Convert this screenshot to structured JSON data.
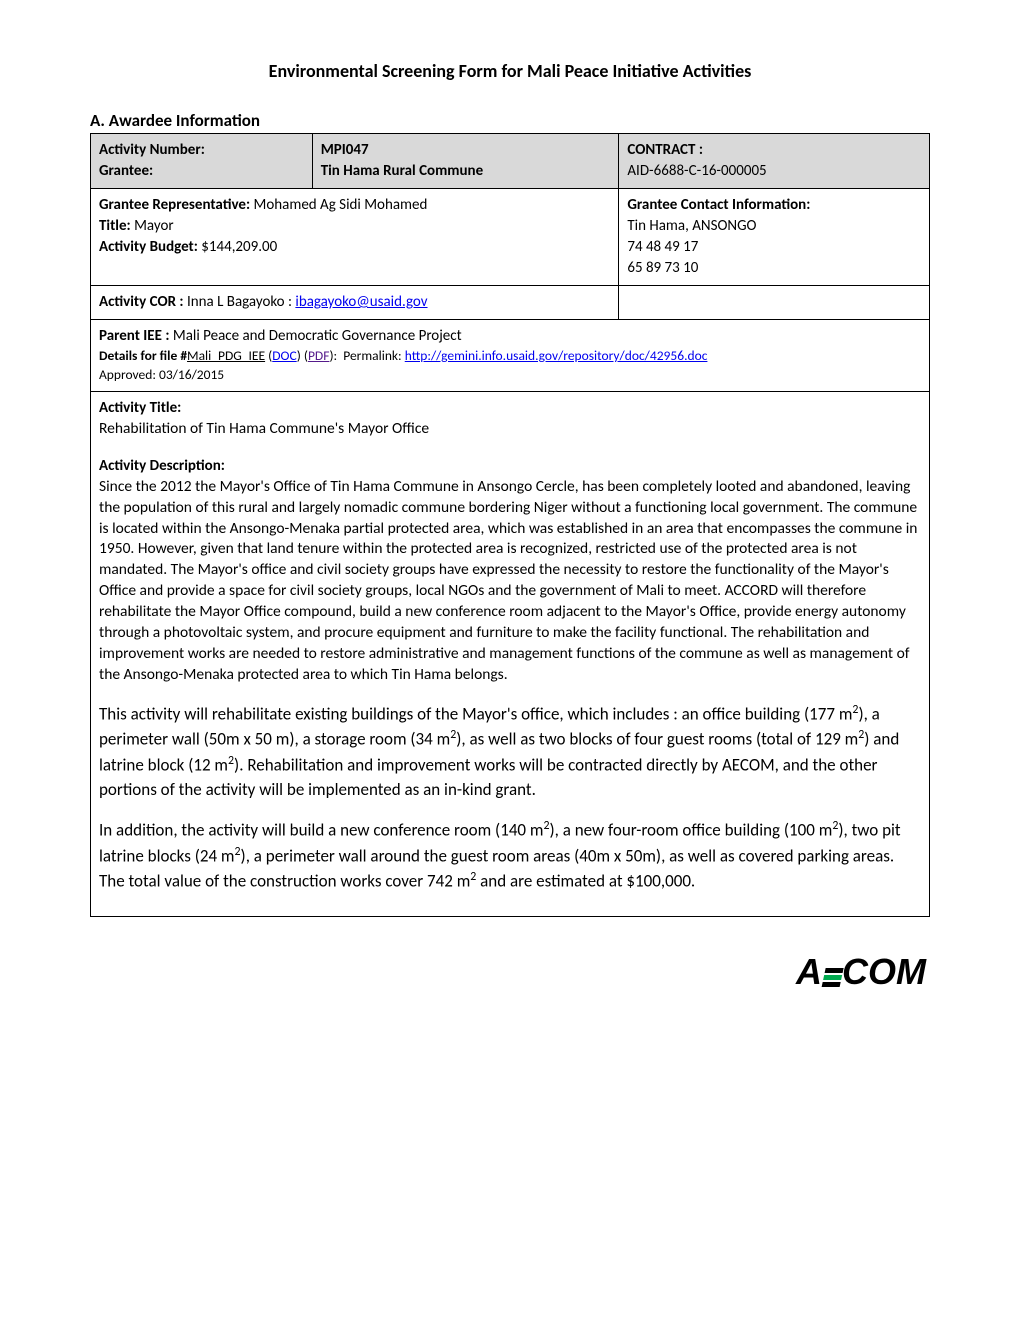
{
  "title": "Environmental Screening Form for Mali Peace Initiative Activities",
  "sectionA": {
    "heading": "A. Awardee Information",
    "activityNumberLabel": "Activity Number:",
    "activityNumber": "MPI047",
    "contractLabel": "CONTRACT :",
    "granteeLabel": "Grantee:",
    "grantee": "Tin Hama Rural Commune",
    "contractNumber": "AID-6688-C-16-000005",
    "granteeRepLabel": "Grantee Representative:",
    "granteeRep": "Mohamed Ag Sidi Mohamed",
    "titleLabel": "Title:",
    "titleValue": "Mayor",
    "budgetLabel": "Activity Budget:",
    "budgetValue": "$144,209.00",
    "contactLabel": "Grantee Contact Information:",
    "contactAddress": "Tin Hama, ANSONGO",
    "contactPhone1": "74 48 49 17",
    "contactPhone2": "65 89 73 10",
    "corLabel": "Activity COR :",
    "corName": "Inna L Bagayoko :",
    "corEmail": "ibagayoko@usaid.gov",
    "parentIEELabel": "Parent IEE :",
    "parentIEE": "Mali Peace and Democratic Governance Project",
    "detailsPrefix": "Details for file #",
    "fileName": "Mali_PDG_IEE",
    "docLink": "DOC",
    "pdfLink": "PDF",
    "permalinkLabel": "Permalink:",
    "permalink": "http://gemini.info.usaid.gov/repository/doc/42956.doc",
    "approved": "Approved:  03/16/2015"
  },
  "activity": {
    "titleLabel": "Activity Title:",
    "title": "Rehabilitation of Tin Hama Commune's Mayor Office",
    "descLabel": "Activity Description:",
    "para1": "Since the 2012 the Mayor's Office of Tin Hama Commune in Ansongo Cercle, has been completely looted and abandoned, leaving the population of this rural and largely nomadic commune bordering Niger without a functioning local government. The commune is located within the Ansongo-Menaka partial protected area, which was established in an area that encompasses the commune in 1950. However, given that land tenure within the protected area is recognized, restricted use of the protected area is not mandated. The Mayor's office and civil society groups have expressed the necessity to restore the functionality of the Mayor's Office and provide a space for civil society groups, local NGOs and the government of Mali to meet. ACCORD will therefore rehabilitate the Mayor Office compound, build a new conference room adjacent to the Mayor's Office, provide energy autonomy through a photovoltaic system, and procure equipment and furniture to make the facility functional.  The rehabilitation and improvement works are needed to restore administrative and management functions of the commune as well as management of the Ansongo-Menaka protected area to which Tin Hama belongs.",
    "footer": {
      "logo": "AECOM"
    }
  }
}
